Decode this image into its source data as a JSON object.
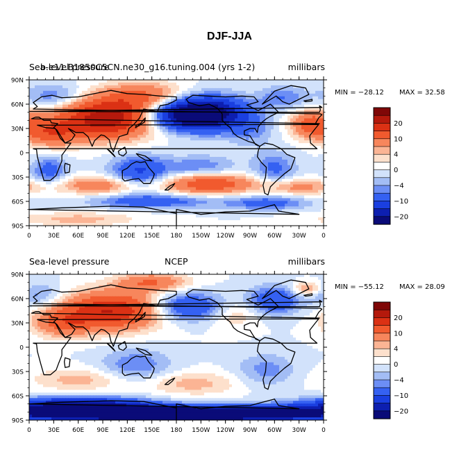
{
  "title": "DJF-JJA",
  "colors": {
    "levels": [
      "#0a0b78",
      "#0d1fb0",
      "#1a3fe0",
      "#3561f2",
      "#6c8ef5",
      "#a3bdf5",
      "#d2e2fb",
      "#ffffff",
      "#fde0cc",
      "#fbb494",
      "#f7865c",
      "#f15a2e",
      "#db3114",
      "#b4190c",
      "#7f0707"
    ]
  },
  "chart_data": [
    {
      "type": "heatmap",
      "left_label": "Sea-level pressure",
      "center_label": "b.e11.B1850C5CN.ne30_g16.tuning.004 (yrs 1-2)",
      "right_label": "millibars",
      "min_text": "MIN = −28.12",
      "max_text": "MAX =  32.58",
      "x_ticks": [
        "0",
        "30E",
        "60E",
        "90E",
        "120E",
        "150E",
        "180",
        "150W",
        "120W",
        "90W",
        "60W",
        "30W",
        "0"
      ],
      "y_ticks": [
        "90N",
        "60N",
        "30N",
        "0",
        "30S",
        "60S",
        "90S"
      ],
      "colorbar_labels": [
        "20",
        "10",
        "4",
        "0",
        "−4",
        "−10",
        "−20"
      ],
      "anomalies": [
        {
          "lon": 95,
          "lat": 42,
          "amp": 24,
          "slon": 40,
          "slat": 17
        },
        {
          "lon": 28,
          "lat": 25,
          "amp": 12,
          "slon": 22,
          "slat": 12
        },
        {
          "lon": 140,
          "lat": 70,
          "amp": 10,
          "slon": 35,
          "slat": 12
        },
        {
          "lon": 195,
          "lat": 47,
          "amp": -24,
          "slon": 35,
          "slat": 13
        },
        {
          "lon": 225,
          "lat": 50,
          "amp": -12,
          "slon": 30,
          "slat": 15
        },
        {
          "lon": 345,
          "lat": 35,
          "amp": 12,
          "slon": 18,
          "slat": 12
        },
        {
          "lon": 270,
          "lat": 30,
          "amp": -5,
          "slon": 20,
          "slat": 15
        },
        {
          "lon": 30,
          "lat": 70,
          "amp": -6,
          "slon": 25,
          "slat": 10
        },
        {
          "lon": 310,
          "lat": 68,
          "amp": -6,
          "slon": 20,
          "slat": 10
        },
        {
          "lon": 135,
          "lat": -25,
          "amp": -11,
          "slon": 25,
          "slat": 15
        },
        {
          "lon": 25,
          "lat": -22,
          "amp": -8,
          "slon": 15,
          "slat": 12
        },
        {
          "lon": 300,
          "lat": -20,
          "amp": -7,
          "slon": 18,
          "slat": 14
        },
        {
          "lon": 210,
          "lat": -18,
          "amp": -6,
          "slon": 30,
          "slat": 10
        },
        {
          "lon": 220,
          "lat": -38,
          "amp": 14,
          "slon": 40,
          "slat": 9
        },
        {
          "lon": 90,
          "lat": -40,
          "amp": 9,
          "slon": 40,
          "slat": 8
        },
        {
          "lon": 330,
          "lat": -42,
          "amp": 7,
          "slon": 30,
          "slat": 7
        },
        {
          "lon": 150,
          "lat": -60,
          "amp": -9,
          "slon": 50,
          "slat": 6
        },
        {
          "lon": 290,
          "lat": -62,
          "amp": -8,
          "slon": 35,
          "slat": 6
        },
        {
          "lon": 60,
          "lat": -82,
          "amp": 5,
          "slon": 50,
          "slat": 6
        }
      ]
    },
    {
      "type": "heatmap",
      "left_label": "Sea-level pressure",
      "center_label": "NCEP",
      "right_label": "millibars",
      "min_text": "MIN = −55.12",
      "max_text": "MAX =  28.09",
      "x_ticks": [
        "0",
        "30E",
        "60E",
        "90E",
        "120E",
        "150E",
        "180",
        "150W",
        "120W",
        "90W",
        "60W",
        "30W",
        "0"
      ],
      "y_ticks": [
        "90N",
        "60N",
        "30N",
        "0",
        "30S",
        "60S",
        "90S"
      ],
      "colorbar_labels": [
        "20",
        "10",
        "4",
        "0",
        "−4",
        "−10",
        "−20"
      ],
      "anomalies": [
        {
          "lon": 100,
          "lat": 45,
          "amp": 20,
          "slon": 40,
          "slat": 16
        },
        {
          "lon": 40,
          "lat": 30,
          "amp": 10,
          "slon": 25,
          "slat": 12
        },
        {
          "lon": 150,
          "lat": 80,
          "amp": 10,
          "slon": 30,
          "slat": 8
        },
        {
          "lon": 195,
          "lat": 50,
          "amp": -11,
          "slon": 30,
          "slat": 12
        },
        {
          "lon": 300,
          "lat": 58,
          "amp": -10,
          "slon": 22,
          "slat": 12
        },
        {
          "lon": 340,
          "lat": 72,
          "amp": 8,
          "slon": 12,
          "slat": 6
        },
        {
          "lon": 250,
          "lat": 40,
          "amp": 4,
          "slon": 20,
          "slat": 12
        },
        {
          "lon": 10,
          "lat": 65,
          "amp": -5,
          "slon": 20,
          "slat": 10
        },
        {
          "lon": 130,
          "lat": -22,
          "amp": -6,
          "slon": 30,
          "slat": 14
        },
        {
          "lon": 290,
          "lat": -28,
          "amp": -5,
          "slon": 25,
          "slat": 14
        },
        {
          "lon": 60,
          "lat": -40,
          "amp": 5,
          "slon": 40,
          "slat": 10
        },
        {
          "lon": 200,
          "lat": -45,
          "amp": 5,
          "slon": 40,
          "slat": 10
        },
        {
          "lon": 180,
          "lat": -82,
          "amp": -40,
          "slon": 150,
          "slat": 6
        },
        {
          "lon": 60,
          "lat": -72,
          "amp": -20,
          "slon": 60,
          "slat": 7
        }
      ]
    }
  ]
}
